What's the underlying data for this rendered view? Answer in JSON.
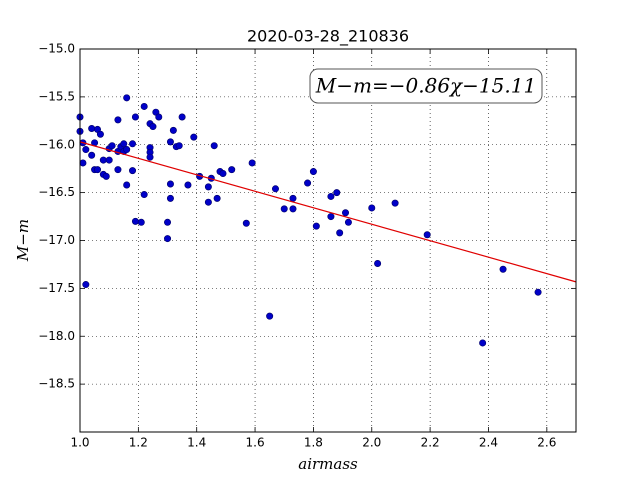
{
  "chart_data": {
    "type": "scatter",
    "title": "2020-03-28_210836",
    "x_label": "airmass",
    "y_label": "M−m",
    "annotation": "M−m=−0.86χ−15.11",
    "color": "#0000c8",
    "fit_color": "#e00000",
    "grid": true,
    "xlim": [
      1.0,
      2.7
    ],
    "ylim": [
      -19.0,
      -15.0
    ],
    "xticks": [
      {
        "value": 1.0,
        "label": "1.0"
      },
      1.2,
      1.4,
      1.6,
      1.8,
      {
        "value": 2.0,
        "label": "2.0"
      },
      2.2,
      2.4,
      2.6
    ],
    "yticks": [
      {
        "value": -15.0,
        "label": "−15.0"
      },
      {
        "value": -15.5,
        "label": "−15.5"
      },
      {
        "value": -16.0,
        "label": "−16.0"
      },
      {
        "value": -16.5,
        "label": "−16.5"
      },
      {
        "value": -17.0,
        "label": "−17.0"
      },
      {
        "value": -17.5,
        "label": "−17.5"
      },
      {
        "value": -18.0,
        "label": "−18.0"
      },
      {
        "value": -18.5,
        "label": "−18.5"
      }
    ],
    "x": [
      1.0,
      1.0,
      1.01,
      1.02,
      1.01,
      1.02,
      1.04,
      1.04,
      1.05,
      1.05,
      1.06,
      1.07,
      1.06,
      1.08,
      1.08,
      1.09,
      1.1,
      1.1,
      1.11,
      1.13,
      1.13,
      1.13,
      1.14,
      1.15,
      1.15,
      1.16,
      1.16,
      1.16,
      1.18,
      1.18,
      1.19,
      1.19,
      1.21,
      1.22,
      1.22,
      1.24,
      1.24,
      1.24,
      1.24,
      1.25,
      1.26,
      1.27,
      1.3,
      1.3,
      1.31,
      1.31,
      1.31,
      1.32,
      1.33,
      1.34,
      1.35,
      1.37,
      1.39,
      1.41,
      1.44,
      1.44,
      1.45,
      1.46,
      1.47,
      1.48,
      1.49,
      1.52,
      1.57,
      1.59,
      1.65,
      1.67,
      1.7,
      1.73,
      1.73,
      1.78,
      1.8,
      1.81,
      1.86,
      1.86,
      1.88,
      1.89,
      1.91,
      1.92,
      2.0,
      2.02,
      2.08,
      2.19,
      2.38,
      2.45,
      2.57
    ],
    "values": [
      -15.71,
      -15.86,
      -15.98,
      -16.05,
      -16.19,
      -17.46,
      -15.83,
      -16.11,
      -16.26,
      -15.98,
      -15.84,
      -15.89,
      -16.26,
      -16.31,
      -16.16,
      -16.33,
      -16.04,
      -16.16,
      -16.01,
      -16.26,
      -16.07,
      -15.74,
      -16.02,
      -16.07,
      -15.99,
      -15.51,
      -16.05,
      -16.42,
      -15.99,
      -16.27,
      -15.71,
      -16.8,
      -16.81,
      -15.6,
      -16.52,
      -16.03,
      -16.08,
      -16.13,
      -15.78,
      -15.81,
      -15.66,
      -15.71,
      -16.81,
      -16.98,
      -15.97,
      -16.41,
      -16.56,
      -15.85,
      -16.02,
      -16.01,
      -15.71,
      -16.42,
      -15.92,
      -16.33,
      -16.6,
      -16.44,
      -16.35,
      -16.01,
      -16.56,
      -16.28,
      -16.3,
      -16.26,
      -16.82,
      -16.19,
      -17.79,
      -16.46,
      -16.67,
      -16.56,
      -16.67,
      -16.4,
      -16.28,
      -16.85,
      -16.54,
      -16.75,
      -16.5,
      -16.92,
      -16.71,
      -16.81,
      -16.66,
      -17.24,
      -16.61,
      -16.94,
      -18.07,
      -17.3,
      -17.54
    ],
    "fit": {
      "x": [
        1.0,
        2.7
      ],
      "values": [
        -15.97,
        -17.432
      ]
    }
  }
}
